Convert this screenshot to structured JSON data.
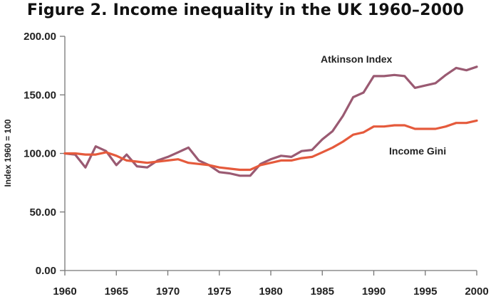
{
  "title": "Figure 2.  Income inequality in the UK 1960–2000",
  "chart_data": {
    "type": "line",
    "title": "Figure 2.  Income inequality in the UK 1960–2000",
    "xlabel": "",
    "ylabel": "Index 1960 = 100",
    "xlim": [
      1960,
      2000
    ],
    "ylim": [
      0,
      200
    ],
    "x_ticks": [
      "1960",
      "1965",
      "1970",
      "1975",
      "1980",
      "1985",
      "1990",
      "1995",
      "2000"
    ],
    "y_ticks": [
      "0.00",
      "50.00",
      "100.00",
      "150.00",
      "200.00"
    ],
    "grid": false,
    "legend": "inline labels",
    "x": [
      1960,
      1961,
      1962,
      1963,
      1964,
      1965,
      1966,
      1967,
      1968,
      1969,
      1970,
      1971,
      1972,
      1973,
      1974,
      1975,
      1976,
      1977,
      1978,
      1979,
      1980,
      1981,
      1982,
      1983,
      1984,
      1985,
      1986,
      1987,
      1988,
      1989,
      1990,
      1991,
      1992,
      1993,
      1994,
      1995,
      1996,
      1997,
      1998,
      1999,
      2000
    ],
    "series": [
      {
        "name": "Atkinson Index",
        "color": "#9a5a72",
        "values": [
          100,
          99,
          88,
          106,
          102,
          90,
          99,
          89,
          88,
          94,
          97,
          101,
          105,
          94,
          90,
          84,
          83,
          81,
          81,
          91,
          95,
          98,
          97,
          102,
          103,
          112,
          119,
          132,
          148,
          152,
          166,
          166,
          167,
          166,
          156,
          158,
          160,
          167,
          173,
          171,
          174
        ]
      },
      {
        "name": "Income Gini",
        "color": "#e55a3c",
        "values": [
          100,
          100,
          99,
          99,
          101,
          98,
          94,
          93,
          92,
          93,
          94,
          95,
          92,
          91,
          90,
          88,
          87,
          86,
          86,
          90,
          92,
          94,
          94,
          96,
          97,
          101,
          105,
          110,
          116,
          118,
          123,
          123,
          124,
          124,
          121,
          121,
          121,
          123,
          126,
          126,
          128
        ]
      }
    ]
  }
}
